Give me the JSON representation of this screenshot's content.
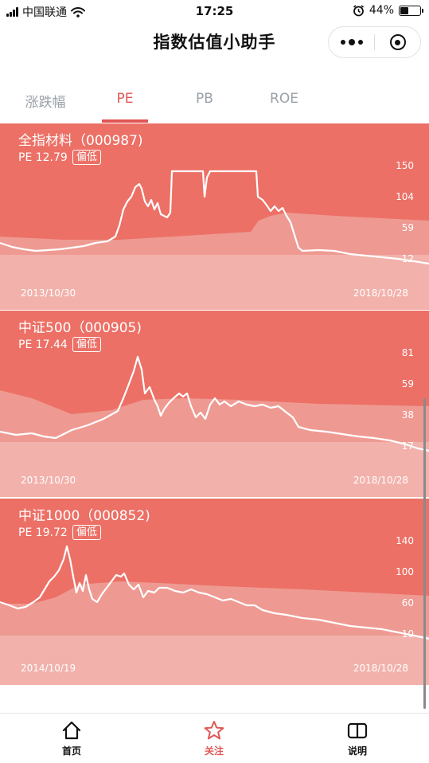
{
  "status_bar": {
    "carrier": "中国联通",
    "time": "17:25",
    "battery": "44%",
    "battery_level": 0.44,
    "icons": [
      "signal-icon",
      "wifi-icon",
      "alarm-icon",
      "battery-icon"
    ]
  },
  "nav": {
    "title": "指数估值小助手",
    "icons": [
      "more-icon",
      "close-mini-program-icon"
    ]
  },
  "tabs": [
    {
      "label": "涨跌幅",
      "active": false
    },
    {
      "label": "PE",
      "active": true
    },
    {
      "label": "PB",
      "active": false
    },
    {
      "label": "ROE",
      "active": false
    }
  ],
  "cards": [
    {
      "title": "全指材料（000987)",
      "pe_text": "PE 12.79",
      "badge": "偏低",
      "yticks": [
        "150",
        "104",
        "59",
        "12"
      ],
      "start_date": "2013/10/30",
      "end_date": "2018/10/28"
    },
    {
      "title": "中证500（000905)",
      "pe_text": "PE 17.44",
      "badge": "偏低",
      "yticks": [
        "81",
        "59",
        "38",
        "17"
      ],
      "start_date": "2013/10/30",
      "end_date": "2018/10/28"
    },
    {
      "title": "中证1000（000852)",
      "pe_text": "PE 19.72",
      "badge": "偏低",
      "yticks": [
        "140",
        "100",
        "60",
        "10"
      ],
      "start_date": "2014/10/19",
      "end_date": "2018/10/28"
    }
  ],
  "tabbar": [
    {
      "label": "首页",
      "icon": "home-icon",
      "active": false
    },
    {
      "label": "关注",
      "icon": "star-icon",
      "active": true
    },
    {
      "label": "说明",
      "icon": "book-icon",
      "active": false
    }
  ],
  "colors": {
    "accent": "#e05655",
    "card_top": "#ec7066",
    "card_mid": "#ee9a92",
    "card_low": "#f2b1ab",
    "tab_inactive": "#9aa0a8"
  }
}
